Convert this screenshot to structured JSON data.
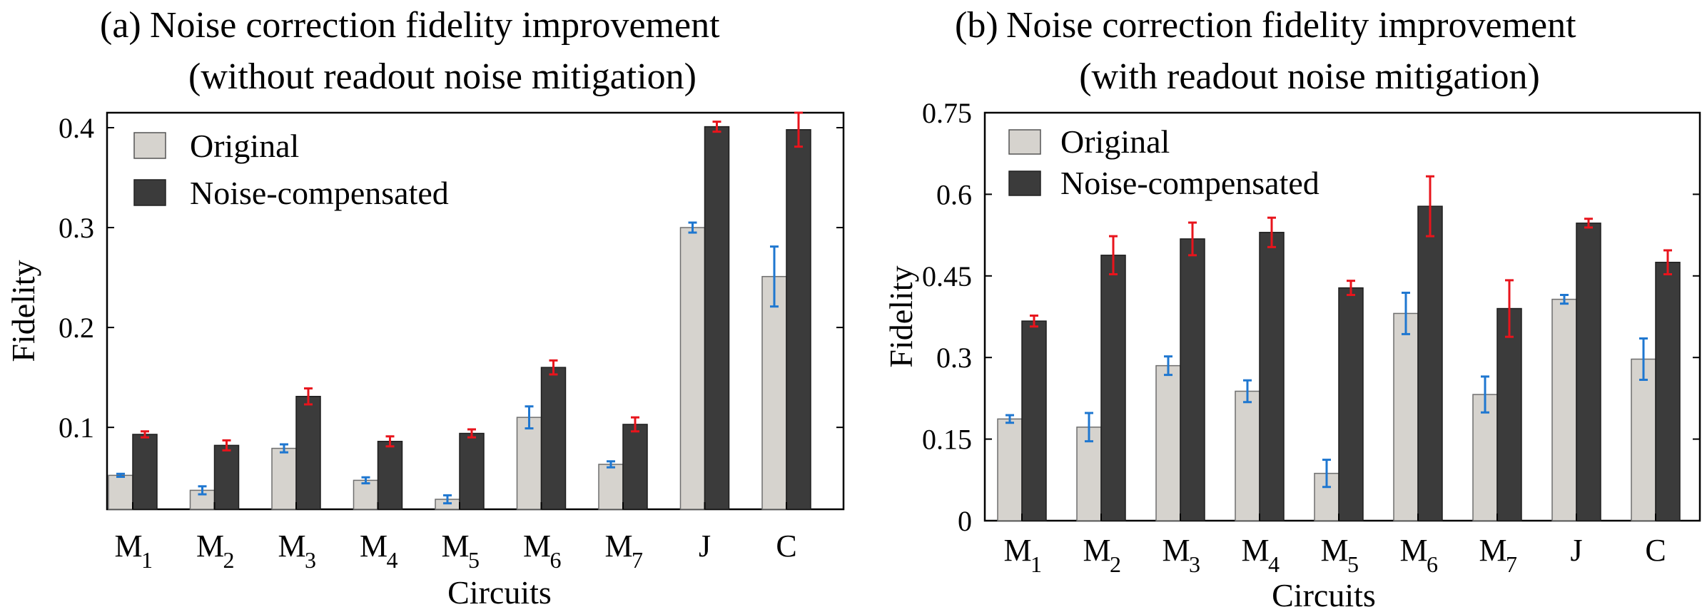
{
  "chart_data": [
    {
      "type": "bar",
      "title_prefix": "(a)",
      "title_line1": "Noise correction fidelity improvement",
      "title_line2": "(without readout noise mitigation)",
      "xlabel": "Circuits",
      "ylabel": "Fidelity",
      "ylim": [
        0.018,
        0.415
      ],
      "yticks": [
        0.1,
        0.2,
        0.3,
        0.4
      ],
      "ytick_labels": [
        "0.1",
        "0.2",
        "0.3",
        "0.4"
      ],
      "categories": [
        {
          "main": "M",
          "sub": "1"
        },
        {
          "main": "M",
          "sub": "2"
        },
        {
          "main": "M",
          "sub": "3"
        },
        {
          "main": "M",
          "sub": "4"
        },
        {
          "main": "M",
          "sub": "5"
        },
        {
          "main": "M",
          "sub": "6"
        },
        {
          "main": "M",
          "sub": "7"
        },
        {
          "main": "J",
          "sub": ""
        },
        {
          "main": "C",
          "sub": ""
        }
      ],
      "series": [
        {
          "name": "Original",
          "color": "#d6d3ce",
          "error_color": "#1f77d0",
          "values": [
            0.052,
            0.037,
            0.079,
            0.047,
            0.028,
            0.11,
            0.063,
            0.3,
            0.251
          ],
          "errors": [
            0.0015,
            0.004,
            0.004,
            0.003,
            0.004,
            0.011,
            0.003,
            0.005,
            0.03
          ]
        },
        {
          "name": "Noise-compensated",
          "color": "#3b3b3b",
          "error_color": "#e8141c",
          "values": [
            0.093,
            0.082,
            0.131,
            0.086,
            0.094,
            0.16,
            0.103,
            0.401,
            0.398
          ],
          "errors": [
            0.003,
            0.005,
            0.008,
            0.005,
            0.004,
            0.007,
            0.007,
            0.005,
            0.017
          ]
        }
      ],
      "legend_position": "top-left"
    },
    {
      "type": "bar",
      "title_prefix": "(b)",
      "title_line1": "Noise correction fidelity improvement",
      "title_line2": "(with readout noise mitigation)",
      "xlabel": "Circuits",
      "ylabel": "Fidelity",
      "ylim": [
        0,
        0.75
      ],
      "yticks": [
        0,
        0.15,
        0.3,
        0.45,
        0.6,
        0.75
      ],
      "ytick_labels": [
        "0",
        "0.15",
        "0.3",
        "0.45",
        "0.6",
        "0.75"
      ],
      "categories": [
        {
          "main": "M",
          "sub": "1"
        },
        {
          "main": "M",
          "sub": "2"
        },
        {
          "main": "M",
          "sub": "3"
        },
        {
          "main": "M",
          "sub": "4"
        },
        {
          "main": "M",
          "sub": "5"
        },
        {
          "main": "M",
          "sub": "6"
        },
        {
          "main": "M",
          "sub": "7"
        },
        {
          "main": "J",
          "sub": ""
        },
        {
          "main": "C",
          "sub": ""
        }
      ],
      "series": [
        {
          "name": "Original",
          "color": "#d6d3ce",
          "error_color": "#1f77d0",
          "values": [
            0.187,
            0.172,
            0.285,
            0.238,
            0.087,
            0.381,
            0.232,
            0.407,
            0.297
          ],
          "errors": [
            0.007,
            0.026,
            0.017,
            0.02,
            0.025,
            0.038,
            0.033,
            0.008,
            0.038
          ]
        },
        {
          "name": "Noise-compensated",
          "color": "#3b3b3b",
          "error_color": "#e8141c",
          "values": [
            0.367,
            0.488,
            0.518,
            0.53,
            0.428,
            0.578,
            0.39,
            0.547,
            0.475
          ],
          "errors": [
            0.01,
            0.035,
            0.03,
            0.027,
            0.013,
            0.055,
            0.052,
            0.008,
            0.022
          ]
        }
      ],
      "legend_position": "top-left"
    }
  ]
}
